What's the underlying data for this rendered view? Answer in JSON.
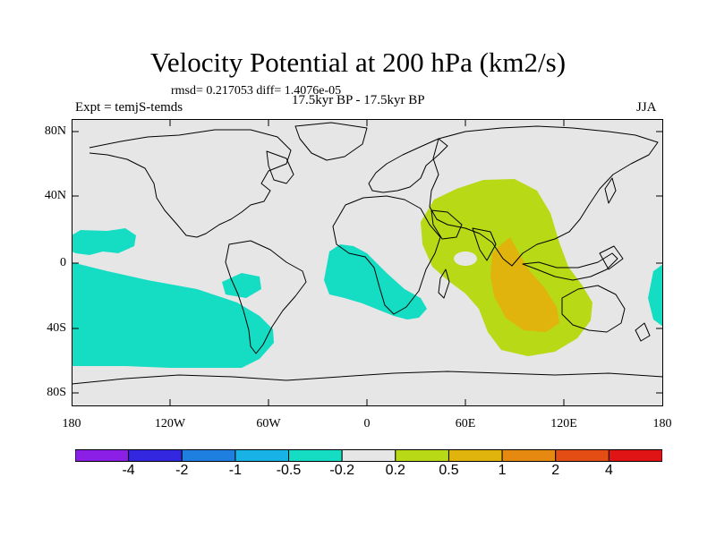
{
  "title": "Velocity Potential at 200 hPa (km2/s)",
  "subtitle": "rmsd= 0.217053 diff= 1.4076e-05",
  "left_label": "Expt = temjS-temds",
  "center_label": "17.5kyr BP - 17.5kyr BP",
  "right_label": "JJA",
  "map": {
    "lat_labels": [
      "80N",
      "40N",
      "0",
      "40S",
      "80S"
    ],
    "lon_labels": [
      "180",
      "120W",
      "60W",
      "0",
      "60E",
      "120E",
      "180"
    ],
    "background": "#e6e6e6"
  },
  "colorbar": {
    "colors": [
      "#8c1fe6",
      "#3328e0",
      "#1f7fe0",
      "#18b2e6",
      "#15ddc4",
      "#e6e6e6",
      "#b8d916",
      "#e0b40c",
      "#e58910",
      "#e44e14",
      "#e01414"
    ],
    "labels": [
      "-4",
      "-2",
      "-1",
      "-0.5",
      "-0.2",
      "0.2",
      "0.5",
      "1",
      "2",
      "4"
    ]
  },
  "colors": {
    "positive_level1": "#b8d916",
    "positive_level2": "#e0b40c",
    "negative_level1": "#15ddc4"
  }
}
